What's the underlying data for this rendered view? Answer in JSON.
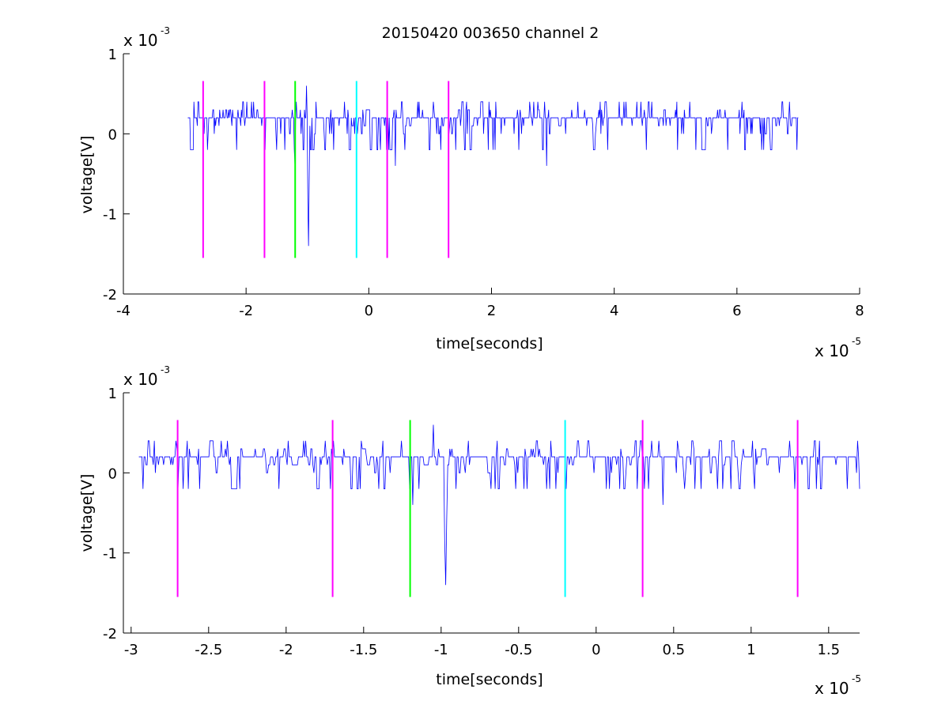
{
  "title": "20150420 003650 channel 2",
  "colors": {
    "signal": "#0000ff",
    "magenta": "#ff00ff",
    "green": "#00ff00",
    "cyan": "#00ffff"
  },
  "chart_data": [
    {
      "type": "line",
      "xlabel": "time[seconds]",
      "ylabel": "voltage[V]",
      "x_multiplier": "x 10",
      "x_exponent": "-5",
      "y_multiplier": "x 10",
      "y_exponent": "-3",
      "xlim": [
        -4,
        8
      ],
      "ylim": [
        -2,
        1
      ],
      "x_ticks": [
        -4,
        -2,
        0,
        2,
        4,
        6,
        8
      ],
      "x_tick_labels": [
        "-4",
        "-2",
        "0",
        "2",
        "4",
        "6",
        "8"
      ],
      "y_ticks": [
        1,
        0,
        -1,
        -2
      ],
      "y_tick_labels": [
        "1",
        "0",
        "-1",
        "-2"
      ],
      "grid": false,
      "series": [
        {
          "style": "noise",
          "x_range": [
            -2.95,
            7.0
          ],
          "baseline": 0.1,
          "min": -0.4,
          "max": 0.4,
          "features": [
            {
              "x": -1.02,
              "y": 0.6
            },
            {
              "x": -0.98,
              "y": -1.4
            },
            {
              "x": -1.2,
              "y": -0.4
            },
            {
              "x": 0.43,
              "y": -0.4
            },
            {
              "x": 2.9,
              "y": -0.4
            }
          ]
        }
      ],
      "markers": [
        {
          "x": -2.7,
          "y_range": [
            -1.55,
            0.66
          ],
          "color": "magenta"
        },
        {
          "x": -1.7,
          "y_range": [
            -1.55,
            0.66
          ],
          "color": "magenta"
        },
        {
          "x": -1.2,
          "y_range": [
            -1.55,
            0.66
          ],
          "color": "green"
        },
        {
          "x": -0.2,
          "y_range": [
            -1.55,
            0.66
          ],
          "color": "cyan"
        },
        {
          "x": 0.3,
          "y_range": [
            -1.55,
            0.66
          ],
          "color": "magenta"
        },
        {
          "x": 1.3,
          "y_range": [
            -1.55,
            0.66
          ],
          "color": "magenta"
        }
      ]
    },
    {
      "type": "line",
      "xlabel": "time[seconds]",
      "ylabel": "voltage[V]",
      "x_multiplier": "x 10",
      "x_exponent": "-5",
      "y_multiplier": "x 10",
      "y_exponent": "-3",
      "xlim": [
        -3.05,
        1.7
      ],
      "ylim": [
        -2,
        1
      ],
      "x_ticks": [
        -3,
        -2.5,
        -2,
        -1.5,
        -1,
        -0.5,
        0,
        0.5,
        1,
        1.5
      ],
      "x_tick_labels": [
        "-3",
        "-2.5",
        "-2",
        "-1.5",
        "-1",
        "-0.5",
        "0",
        "0.5",
        "1",
        "1.5"
      ],
      "y_ticks": [
        1,
        0,
        -1,
        -2
      ],
      "y_tick_labels": [
        "1",
        "0",
        "-1",
        "-2"
      ],
      "grid": false,
      "series": [
        {
          "style": "noise",
          "x_range": [
            -2.95,
            1.7
          ],
          "baseline": 0.1,
          "min": -0.2,
          "max": 0.4,
          "features": [
            {
              "x": -1.2,
              "y": -0.2
            },
            {
              "x": -1.18,
              "y": -0.4
            },
            {
              "x": -1.05,
              "y": 0.6
            },
            {
              "x": -0.97,
              "y": -1.4
            },
            {
              "x": 0.43,
              "y": -0.4
            }
          ]
        }
      ],
      "markers": [
        {
          "x": -2.7,
          "y_range": [
            -1.55,
            0.66
          ],
          "color": "magenta"
        },
        {
          "x": -1.7,
          "y_range": [
            -1.55,
            0.66
          ],
          "color": "magenta"
        },
        {
          "x": -1.2,
          "y_range": [
            -1.55,
            0.66
          ],
          "color": "green"
        },
        {
          "x": -0.2,
          "y_range": [
            -1.55,
            0.66
          ],
          "color": "cyan"
        },
        {
          "x": 0.3,
          "y_range": [
            -1.55,
            0.66
          ],
          "color": "magenta"
        },
        {
          "x": 1.3,
          "y_range": [
            -1.55,
            0.66
          ],
          "color": "magenta"
        }
      ]
    }
  ]
}
